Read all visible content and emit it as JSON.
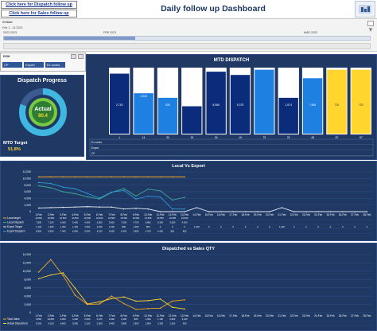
{
  "links": {
    "dispatch": "Click here for Dispatch follow up",
    "sales": "Click here for Sales follow up"
  },
  "title": "Daily follow up Dashboard",
  "timeline": {
    "label": "Gl Date",
    "range": "Feb 1 - 13 2023",
    "filter_icon": "filter-clear-icon"
  },
  "slicer": {
    "label": "DCM",
    "options": [
      "CP",
      "Export",
      "Ex works"
    ]
  },
  "progress": {
    "title": "Dispatch Progress",
    "center_label": "Actual",
    "center_value": "80.4",
    "target_label": "MTD Target",
    "target_value": "51.8%",
    "fraction": 0.804
  },
  "colors": {
    "panel": "#1f3864",
    "bar_dark": "#0a2c7a",
    "bar_light": "#1e80e0",
    "bar_gold": "#ffd52e",
    "line_orange": "#f5a623",
    "line_blue": "#2f9bd8",
    "line_teal": "#3fa796",
    "line_white": "#e6ecf5"
  },
  "mtd": {
    "title": "MTD DISPATCH",
    "bars": [
      {
        "top_value": "",
        "mid_value": "2,743",
        "color": "dark",
        "filled": 0.92
      },
      {
        "top_value": "1,344",
        "mid_value": "",
        "color": "light",
        "filled": 0.62
      },
      {
        "top_value": "",
        "mid_value": "925",
        "color": "light",
        "filled": 0.55
      },
      {
        "top_value": "",
        "mid_value": "783",
        "color": "dark",
        "filled": 0.42
      },
      {
        "top_value": "",
        "mid_value": "8,565",
        "color": "dark",
        "filled": 0.95
      },
      {
        "top_value": "",
        "mid_value": "5,375",
        "color": "dark",
        "filled": 0.9
      },
      {
        "top_value": "",
        "mid_value": "",
        "color": "light",
        "filled": 0.98
      },
      {
        "top_value": "",
        "mid_value": "1,574",
        "color": "dark",
        "filled": 0.55
      },
      {
        "top_value": "",
        "mid_value": "7,694",
        "color": "light",
        "filled": 0.85
      },
      {
        "top_value": "",
        "mid_value": "700",
        "color": "gold",
        "filled": 0.98
      },
      {
        "top_value": "",
        "mid_value": "700",
        "color": "gold",
        "filled": 0.98
      }
    ],
    "row_labels": [
      "Ex works",
      "Export",
      "CP"
    ],
    "categories": [
      "1",
      "14",
      "30",
      "15",
      "26",
      "19",
      "75",
      "20",
      "48",
      "87",
      "97"
    ]
  },
  "local_export": {
    "title": "Local Vs Export",
    "y_ticks": [
      "0",
      "2,000",
      "4,000",
      "6,000",
      "8,000",
      "10,000",
      "12,000"
    ],
    "x": [
      "1-Feb",
      "2-Feb",
      "3-Feb",
      "4-Feb",
      "5-Feb",
      "6-Feb",
      "7-Feb",
      "8-Feb",
      "9-Feb",
      "10-Feb",
      "11-Feb",
      "12-Feb",
      "13-Feb",
      "14-Feb",
      "15-Feb",
      "16-Feb",
      "17-Feb",
      "18-Feb",
      "19-Feb",
      "20-Feb",
      "21-Feb",
      "22-Feb",
      "23-Feb",
      "24-Feb",
      "25-Feb",
      "26-Feb",
      "27-Feb",
      "28-Feb"
    ],
    "series": [
      {
        "name": "Local target",
        "color": "line_orange",
        "values": [
          10500,
          10500,
          10500,
          10500,
          10500,
          10500,
          10500,
          10500,
          10500,
          10500,
          10500,
          10500,
          10500
        ]
      },
      {
        "name": "Local Dispatch",
        "color": "line_teal",
        "values": [
          7800,
          7200,
          6000,
          5400,
          4500,
          3800,
          5800,
          7000,
          4700,
          6800,
          6300,
          3500,
          4300
        ]
      },
      {
        "name": "Export Target",
        "color": "line_white",
        "values": [
          1100,
          1200,
          1300,
          1400,
          1500,
          1400,
          1400,
          800,
          1000,
          800,
          0,
          0,
          0,
          1200,
          0,
          0,
          0,
          0,
          0,
          0,
          1200,
          0,
          0,
          0,
          0,
          0,
          0,
          0
        ]
      },
      {
        "name": "Export Dispatch",
        "color": "line_blue",
        "values": [
          8800,
          8500,
          7400,
          6900,
          5500,
          4100,
          5900,
          6400,
          3800,
          4700,
          4400,
          800,
          800
        ]
      }
    ]
  },
  "dispatch_sales": {
    "title": "Dispatched vs Sales QTY",
    "y_ticks": [
      "0",
      "2,000",
      "4,000",
      "6,000",
      "8,000",
      "10,000",
      "12,000",
      "14,000"
    ],
    "x": [
      "1-Feb",
      "2-Feb",
      "3-Feb",
      "4-Feb",
      "5-Feb",
      "6-Feb",
      "7-Feb",
      "8-Feb",
      "9-Feb",
      "10-Feb",
      "11-Feb",
      "12-Feb",
      "13-Feb",
      "14-Feb",
      "15-Feb",
      "16-Feb",
      "17-Feb",
      "18-Feb",
      "19-Feb",
      "20-Feb",
      "21-Feb",
      "22-Feb",
      "23-Feb",
      "24-Feb",
      "25-Feb",
      "26-Feb",
      "27-Feb",
      "28-Feb"
    ],
    "series": [
      {
        "name": "Total Sales",
        "color": "line_orange",
        "values": [
          9800,
          12800,
          9000,
          4200,
          2000,
          2100,
          4000,
          2200,
          800,
          1000,
          1100,
          2800,
          3100
        ]
      },
      {
        "name": "Actual Dispatched",
        "color": "line_gold",
        "values": [
          8200,
          9100,
          9600,
          5900,
          2100,
          2600,
          3400,
          3800,
          2800,
          2900,
          3300,
          1300,
          900
        ]
      }
    ]
  }
}
